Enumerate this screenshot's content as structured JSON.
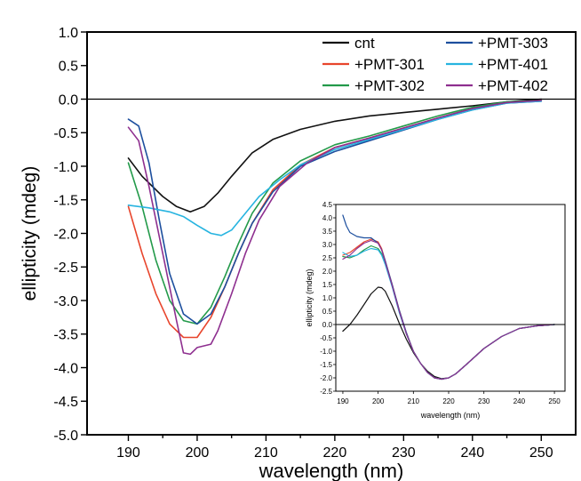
{
  "chart_data": [
    {
      "type": "line",
      "xlabel": "wavelength (nm)",
      "ylabel": "ellipticity (mdeg)",
      "xlim": [
        184,
        255
      ],
      "ylim": [
        -5.0,
        1.0
      ],
      "xticks": [
        190,
        200,
        210,
        220,
        230,
        240,
        250
      ],
      "yticks": [
        1.0,
        0.5,
        0.0,
        -0.5,
        -1.0,
        -1.5,
        -2.0,
        -2.5,
        -3.0,
        -3.5,
        -4.0,
        -4.5,
        -5.0
      ],
      "xtick_labels": [
        "190",
        "200",
        "210",
        "220",
        "230",
        "240",
        "250"
      ],
      "ytick_labels": [
        "1.0",
        "0.5",
        "0.0",
        "-0.5",
        "-1.0",
        "-1.5",
        "-2.0",
        "-2.5",
        "-3.0",
        "-3.5",
        "-4.0",
        "-4.5",
        "-5.0"
      ],
      "zero_line": 0,
      "legend_position": "top-right",
      "series": [
        {
          "name": "cnt",
          "color": "#111111",
          "x": [
            190,
            192,
            195,
            197,
            199,
            201,
            203,
            205,
            208,
            211,
            215,
            220,
            225,
            230,
            235,
            240,
            245,
            250
          ],
          "y": [
            -0.88,
            -1.15,
            -1.45,
            -1.6,
            -1.68,
            -1.6,
            -1.4,
            -1.15,
            -0.8,
            -0.6,
            -0.45,
            -0.33,
            -0.25,
            -0.2,
            -0.15,
            -0.1,
            -0.04,
            0.0
          ]
        },
        {
          "name": "+PMT-301",
          "color": "#e8452c",
          "x": [
            190,
            192,
            194,
            196,
            198,
            200,
            202,
            204,
            206,
            208,
            211,
            215,
            220,
            225,
            230,
            235,
            240,
            245,
            250
          ],
          "y": [
            -1.6,
            -2.3,
            -2.9,
            -3.35,
            -3.55,
            -3.55,
            -3.25,
            -2.8,
            -2.3,
            -1.85,
            -1.35,
            -0.98,
            -0.72,
            -0.58,
            -0.43,
            -0.28,
            -0.14,
            -0.05,
            -0.02
          ]
        },
        {
          "name": "+PMT-302",
          "color": "#239a4a",
          "x": [
            190,
            192,
            194,
            196,
            198,
            200,
            202,
            204,
            206,
            208,
            211,
            215,
            220,
            225,
            230,
            235,
            240,
            245,
            250
          ],
          "y": [
            -0.95,
            -1.6,
            -2.4,
            -3.0,
            -3.3,
            -3.35,
            -3.1,
            -2.65,
            -2.15,
            -1.7,
            -1.25,
            -0.92,
            -0.68,
            -0.55,
            -0.4,
            -0.25,
            -0.12,
            -0.04,
            -0.02
          ]
        },
        {
          "name": "+PMT-303",
          "color": "#1d4f9e",
          "x": [
            190,
            191.5,
            193,
            194.5,
            196,
            198,
            200,
            202,
            204,
            206,
            208,
            211,
            215,
            220,
            225,
            230,
            235,
            240,
            245,
            250
          ],
          "y": [
            -0.3,
            -0.4,
            -0.95,
            -1.8,
            -2.6,
            -3.2,
            -3.35,
            -3.2,
            -2.8,
            -2.3,
            -1.85,
            -1.38,
            -1.0,
            -0.78,
            -0.62,
            -0.46,
            -0.3,
            -0.16,
            -0.06,
            -0.03
          ]
        },
        {
          "name": "+PMT-401",
          "color": "#27b4e0",
          "x": [
            190,
            193,
            196,
            198,
            200,
            202,
            203.5,
            205,
            207,
            209,
            212,
            215,
            220,
            225,
            230,
            235,
            240,
            245,
            250
          ],
          "y": [
            -1.58,
            -1.62,
            -1.68,
            -1.75,
            -1.88,
            -2.0,
            -2.03,
            -1.95,
            -1.7,
            -1.45,
            -1.2,
            -0.98,
            -0.75,
            -0.6,
            -0.45,
            -0.3,
            -0.16,
            -0.06,
            -0.03
          ]
        },
        {
          "name": "+PMT-402",
          "color": "#8e2f8f",
          "x": [
            190,
            191.5,
            193,
            195,
            197,
            198,
            199,
            200,
            202,
            203,
            205,
            207,
            209,
            212,
            216,
            220,
            225,
            230,
            235,
            240,
            245,
            250
          ],
          "y": [
            -0.42,
            -0.62,
            -1.3,
            -2.3,
            -3.3,
            -3.78,
            -3.8,
            -3.7,
            -3.65,
            -3.45,
            -2.9,
            -2.3,
            -1.8,
            -1.3,
            -0.95,
            -0.72,
            -0.58,
            -0.43,
            -0.28,
            -0.14,
            -0.05,
            -0.02
          ]
        }
      ]
    },
    {
      "type": "line",
      "xlabel": "wavelength (nm)",
      "ylabel": "ellipticity (mdeg)",
      "xlim": [
        188,
        253
      ],
      "ylim": [
        -2.5,
        4.5
      ],
      "xticks": [
        190,
        200,
        210,
        220,
        230,
        240,
        250
      ],
      "yticks": [
        4.5,
        4.0,
        3.5,
        3.0,
        2.5,
        2.0,
        1.5,
        1.0,
        0.5,
        0.0,
        -0.5,
        -1.0,
        -1.5,
        -2.0,
        -2.5
      ],
      "xtick_labels": [
        "190",
        "200",
        "210",
        "220",
        "230",
        "240",
        "250"
      ],
      "ytick_labels": [
        "4.5",
        "4.0",
        "3.5",
        "3.0",
        "2.5",
        "2.0",
        "1.5",
        "1.0",
        "0.5",
        "0.0",
        "-0.5",
        "-1.0",
        "-1.5",
        "-2.0",
        "-2.5"
      ],
      "zero_line": 0,
      "series": [
        {
          "name": "cnt",
          "color": "#111111",
          "x": [
            190,
            192,
            194,
            196,
            198,
            200,
            201,
            202,
            204,
            206,
            208,
            210,
            212,
            214,
            216,
            218,
            220,
            222,
            225,
            230,
            235,
            240,
            245,
            250
          ],
          "y": [
            -0.25,
            0.0,
            0.35,
            0.75,
            1.15,
            1.4,
            1.38,
            1.25,
            0.7,
            0.05,
            -0.55,
            -1.05,
            -1.45,
            -1.75,
            -1.95,
            -2.03,
            -2.0,
            -1.85,
            -1.5,
            -0.9,
            -0.45,
            -0.15,
            -0.05,
            0.0
          ]
        },
        {
          "name": "+PMT-301",
          "color": "#e8452c",
          "x": [
            190,
            192,
            194,
            196,
            198,
            200,
            201,
            202,
            204,
            206,
            208,
            210,
            212,
            214,
            216,
            218,
            220,
            222,
            225,
            230,
            235,
            240,
            245,
            250
          ],
          "y": [
            2.6,
            2.7,
            2.9,
            3.1,
            3.2,
            3.1,
            2.85,
            2.4,
            1.5,
            0.55,
            -0.3,
            -1.0,
            -1.45,
            -1.8,
            -2.0,
            -2.05,
            -2.0,
            -1.85,
            -1.5,
            -0.9,
            -0.45,
            -0.15,
            -0.05,
            0.0
          ]
        },
        {
          "name": "+PMT-302",
          "color": "#239a4a",
          "x": [
            190,
            192,
            194,
            196,
            198,
            200,
            201,
            202,
            204,
            206,
            208,
            210,
            212,
            214,
            216,
            218,
            220,
            222,
            225,
            230,
            235,
            240,
            245,
            250
          ],
          "y": [
            2.55,
            2.5,
            2.6,
            2.8,
            2.95,
            2.85,
            2.65,
            2.3,
            1.45,
            0.5,
            -0.35,
            -1.0,
            -1.45,
            -1.8,
            -2.0,
            -2.05,
            -2.0,
            -1.85,
            -1.5,
            -0.9,
            -0.45,
            -0.15,
            -0.05,
            0.0
          ]
        },
        {
          "name": "+PMT-303",
          "color": "#1d4f9e",
          "x": [
            190,
            191,
            192,
            194,
            196,
            198,
            200,
            201,
            202,
            204,
            206,
            208,
            210,
            212,
            214,
            216,
            218,
            220,
            222,
            225,
            230,
            235,
            240,
            245,
            250
          ],
          "y": [
            4.1,
            3.7,
            3.45,
            3.3,
            3.25,
            3.25,
            3.05,
            2.8,
            2.4,
            1.5,
            0.55,
            -0.3,
            -1.0,
            -1.45,
            -1.8,
            -2.0,
            -2.05,
            -2.0,
            -1.85,
            -1.5,
            -0.9,
            -0.45,
            -0.15,
            -0.05,
            0.0
          ]
        },
        {
          "name": "+PMT-401",
          "color": "#27b4e0",
          "x": [
            190,
            192,
            194,
            196,
            198,
            200,
            201,
            202,
            204,
            206,
            208,
            210,
            212,
            214,
            216,
            218,
            220,
            222,
            225,
            230,
            235,
            240,
            245,
            250
          ],
          "y": [
            2.7,
            2.55,
            2.6,
            2.75,
            2.85,
            2.8,
            2.6,
            2.25,
            1.4,
            0.45,
            -0.35,
            -1.0,
            -1.45,
            -1.8,
            -2.0,
            -2.05,
            -2.0,
            -1.85,
            -1.5,
            -0.9,
            -0.45,
            -0.15,
            -0.05,
            0.0
          ]
        },
        {
          "name": "+PMT-402",
          "color": "#8e2f8f",
          "x": [
            190,
            192,
            194,
            196,
            198,
            200,
            201,
            202,
            204,
            206,
            208,
            210,
            212,
            214,
            216,
            218,
            220,
            222,
            225,
            230,
            235,
            240,
            245,
            250
          ],
          "y": [
            2.45,
            2.6,
            2.85,
            3.05,
            3.15,
            3.05,
            2.8,
            2.35,
            1.45,
            0.5,
            -0.35,
            -1.0,
            -1.45,
            -1.8,
            -2.0,
            -2.05,
            -2.0,
            -1.85,
            -1.5,
            -0.9,
            -0.45,
            -0.15,
            -0.05,
            0.0
          ]
        }
      ]
    }
  ]
}
